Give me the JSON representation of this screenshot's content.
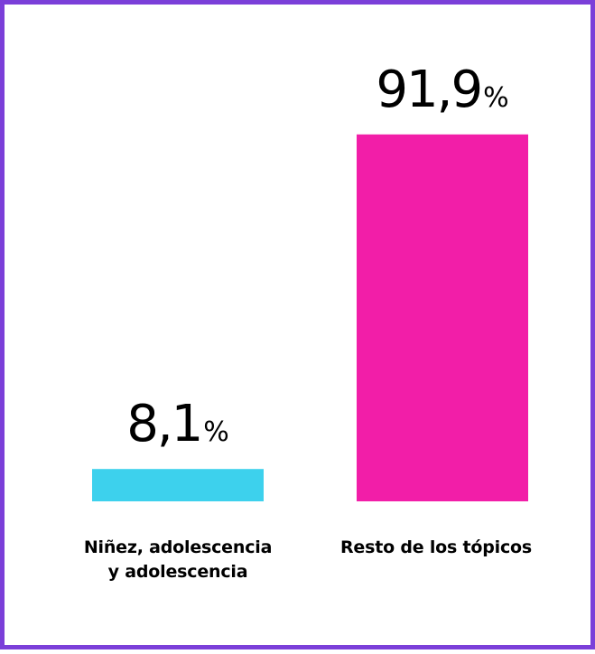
{
  "colors": {
    "frame": "#7b3fd9",
    "bar_1": "#3dd1ed",
    "bar_2": "#f21ea8"
  },
  "chart_data": {
    "type": "bar",
    "categories": [
      [
        "Niñez, adolescencia",
        "y adolescencia"
      ],
      [
        "Resto de los tópicos"
      ]
    ],
    "values": [
      8.1,
      91.9
    ],
    "value_labels": [
      {
        "number": "8,1",
        "unit": "%"
      },
      {
        "number": "91,9",
        "unit": "%"
      }
    ],
    "ylim": [
      0,
      100
    ],
    "grid": false,
    "legend": "none"
  }
}
